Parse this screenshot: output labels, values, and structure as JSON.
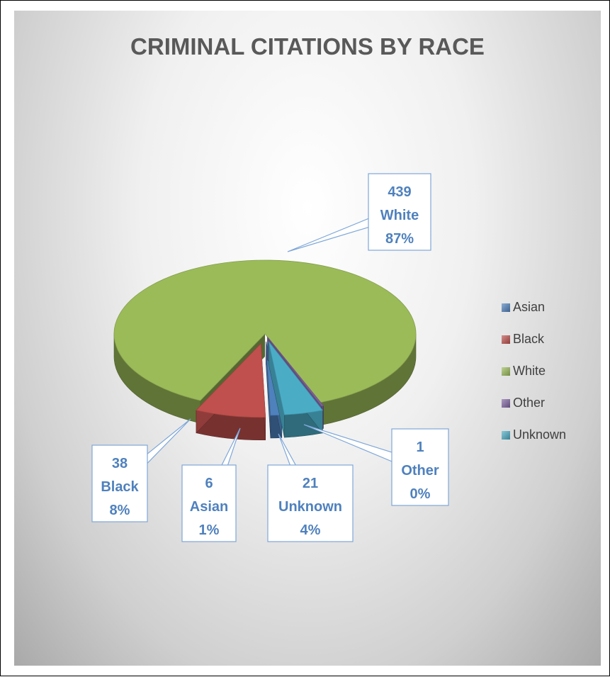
{
  "chart_data": {
    "type": "pie",
    "title": "CRIMINAL CITATIONS BY RACE",
    "legend_position": "right",
    "slices": [
      {
        "name": "Asian",
        "value": 6,
        "percent": "1%",
        "color": "#4F81BD"
      },
      {
        "name": "Black",
        "value": 38,
        "percent": "8%",
        "color": "#C0504D"
      },
      {
        "name": "White",
        "value": 439,
        "percent": "87%",
        "color": "#9BBB59"
      },
      {
        "name": "Other",
        "value": 1,
        "percent": "0%",
        "color": "#8064A2"
      },
      {
        "name": "Unknown",
        "value": 21,
        "percent": "4%",
        "color": "#4BACC6"
      }
    ]
  }
}
